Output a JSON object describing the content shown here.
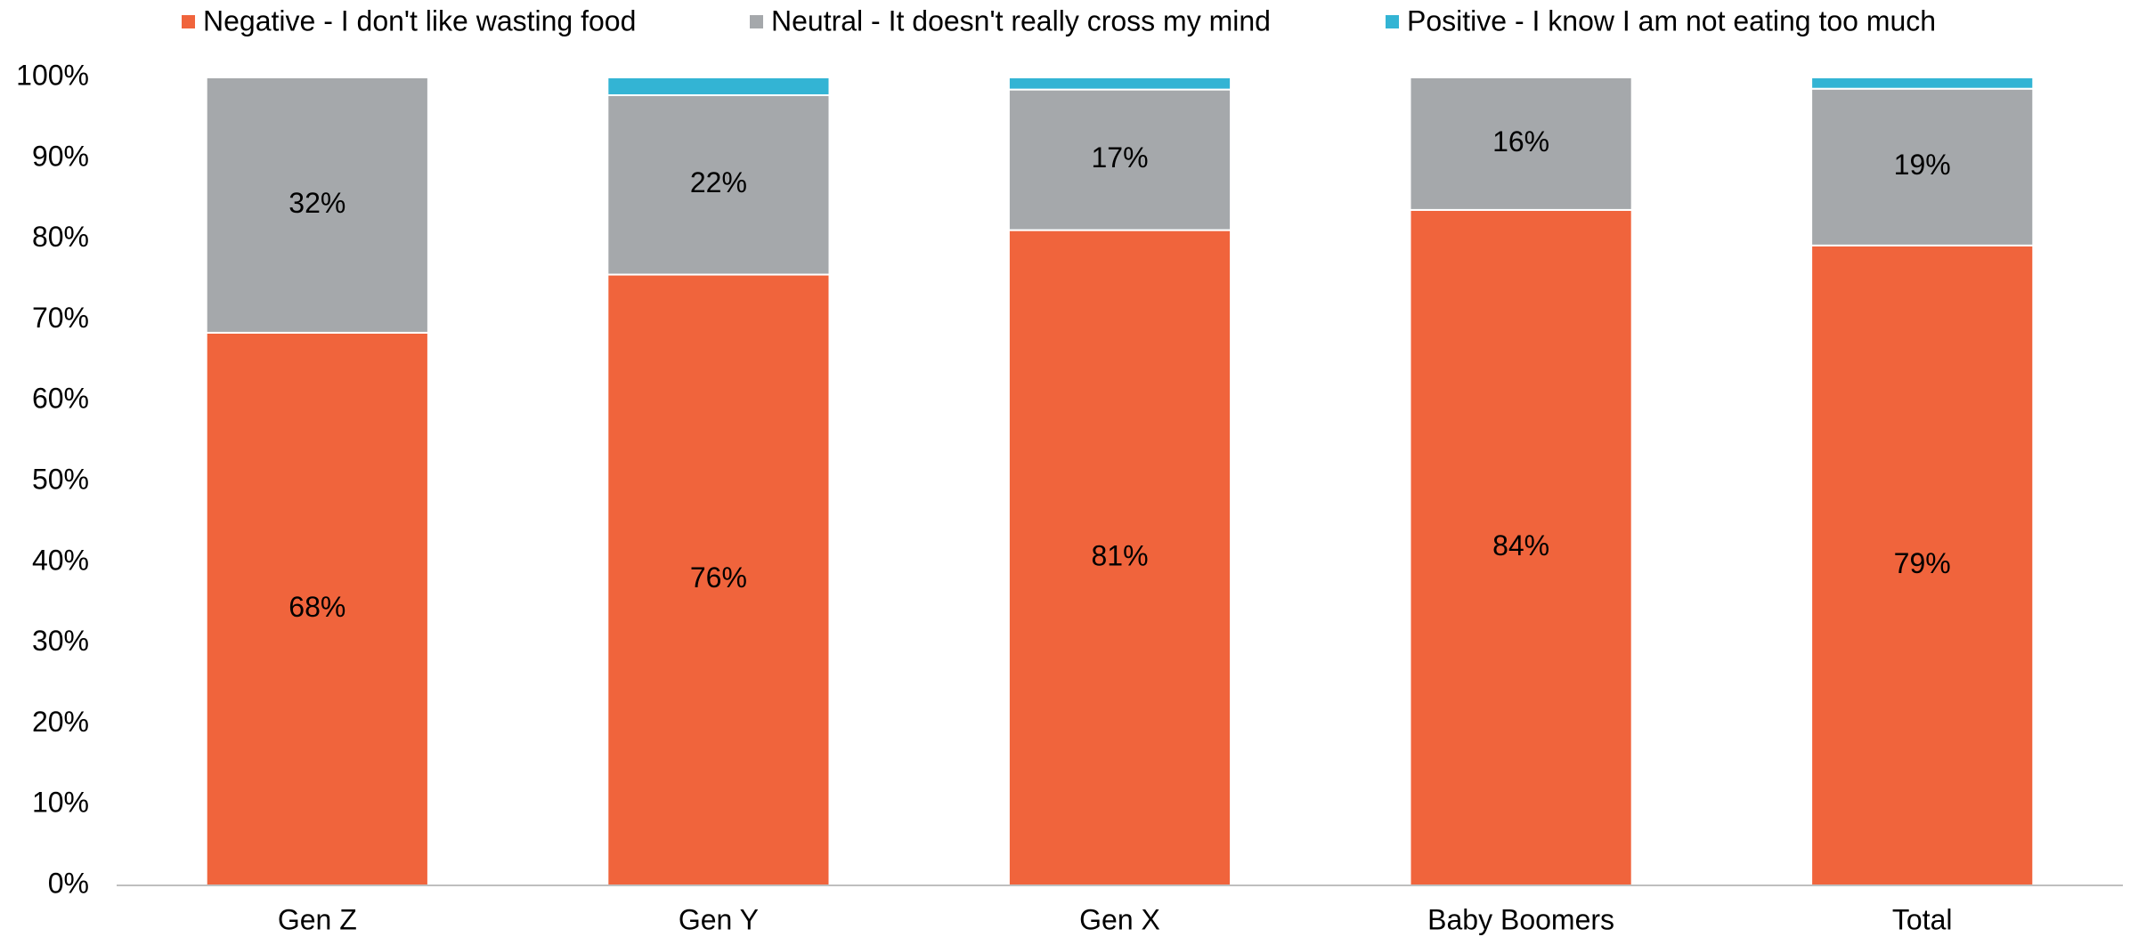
{
  "chart_data": {
    "type": "stacked_bar",
    "categories": [
      "Gen Z",
      "Gen Y",
      "Gen X",
      "Baby Boomers",
      "Total"
    ],
    "series": [
      {
        "name": "Negative - I don't like wasting food",
        "color": "#f0643c",
        "values": [
          68.4,
          75.6,
          81.1,
          83.6,
          79.2
        ],
        "value_labels": [
          "68%",
          "76%",
          "81%",
          "84%",
          "79%"
        ]
      },
      {
        "name": "Neutral - It doesn't really cross my mind",
        "color": "#a5a8ab",
        "values": [
          31.6,
          22.2,
          17.4,
          16.4,
          19.4
        ],
        "value_labels": [
          "32%",
          "22%",
          "17%",
          "16%",
          "19%"
        ]
      },
      {
        "name": "Positive - I know I am not eating too much",
        "color": "#33b4d4",
        "values": [
          0,
          2.2,
          1.5,
          0,
          1.4
        ]
      }
    ],
    "ylim": [
      0,
      100
    ],
    "yticks": [
      {
        "value": 0,
        "label": "0%"
      },
      {
        "value": 10,
        "label": "10%"
      },
      {
        "value": 20,
        "label": "20%"
      },
      {
        "value": 30,
        "label": "30%"
      },
      {
        "value": 40,
        "label": "40%"
      },
      {
        "value": 50,
        "label": "50%"
      },
      {
        "value": 60,
        "label": "60%"
      },
      {
        "value": 70,
        "label": "70%"
      },
      {
        "value": 80,
        "label": "80%"
      },
      {
        "value": 90,
        "label": "90%"
      },
      {
        "value": 100,
        "label": "100%"
      }
    ],
    "legend": "top"
  }
}
